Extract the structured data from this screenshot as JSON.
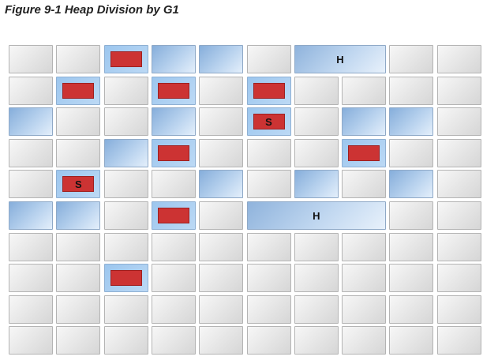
{
  "figure": {
    "title": "Figure 9-1 Heap Division by G1",
    "survivor_label": "S",
    "humongous_label": "H"
  },
  "grid": {
    "columns": 10,
    "rows": 10,
    "regions": [
      [
        "free",
        "free",
        "eden",
        "blue",
        "blue",
        "free",
        "humongous:2",
        "",
        "free",
        "free"
      ],
      [
        "free",
        "eden",
        "free",
        "eden",
        "free",
        "eden",
        "free",
        "free",
        "free",
        "free"
      ],
      [
        "blue",
        "free",
        "free",
        "blue",
        "free",
        "survivor",
        "free",
        "blue",
        "blue",
        "free"
      ],
      [
        "free",
        "free",
        "blue",
        "eden",
        "free",
        "free",
        "free",
        "eden",
        "free",
        "free"
      ],
      [
        "free",
        "survivor",
        "free",
        "free",
        "blue",
        "free",
        "blue",
        "free",
        "blue",
        "free"
      ],
      [
        "blue",
        "blue",
        "free",
        "eden",
        "free",
        "humongous:3",
        "",
        "",
        "free",
        "free"
      ],
      [
        "free",
        "free",
        "free",
        "free",
        "free",
        "free",
        "free",
        "free",
        "free",
        "free"
      ],
      [
        "free",
        "free",
        "eden",
        "free",
        "free",
        "free",
        "free",
        "free",
        "free",
        "free"
      ],
      [
        "free",
        "free",
        "free",
        "free",
        "free",
        "free",
        "free",
        "free",
        "free",
        "free"
      ],
      [
        "free",
        "free",
        "free",
        "free",
        "free",
        "free",
        "free",
        "free",
        "free",
        "free"
      ]
    ]
  },
  "colors": {
    "eden_red": "#cc3333",
    "region_blue": "#b8d2ee",
    "region_free": "#e3e3e3"
  }
}
